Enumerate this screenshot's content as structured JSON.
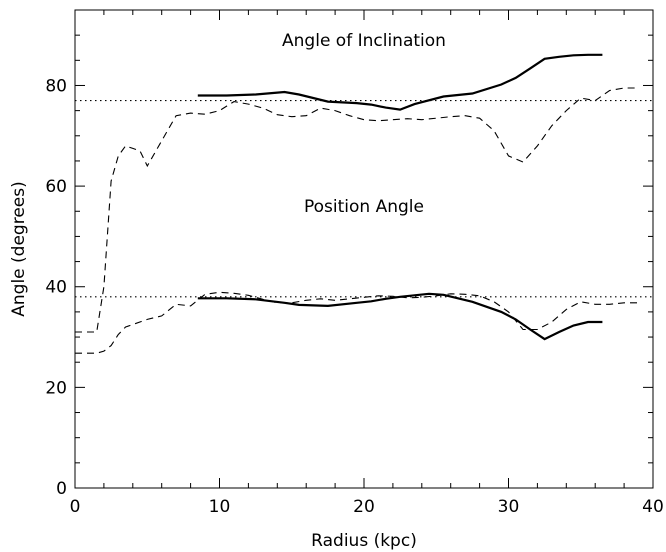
{
  "chart_data": {
    "type": "line",
    "title": "",
    "xlabel": "Radius (kpc)",
    "ylabel": "Angle (degrees)",
    "xlim": [
      0,
      40
    ],
    "ylim": [
      0,
      95
    ],
    "x_ticks": [
      0,
      10,
      20,
      30,
      40
    ],
    "y_ticks": [
      0,
      20,
      40,
      60,
      80
    ],
    "x_tick_labels": [
      "0",
      "10",
      "20",
      "30",
      "40"
    ],
    "y_tick_labels": [
      "0",
      "20",
      "40",
      "60",
      "80"
    ],
    "grid": false,
    "legend": "none",
    "annotations": [
      {
        "text": "Angle of Inclination",
        "x": 20,
        "y": 89
      },
      {
        "text": "Position Angle",
        "x": 20,
        "y": 56
      }
    ],
    "reference_lines": [
      {
        "y": 77,
        "style": "dotted"
      },
      {
        "y": 38,
        "style": "dotted"
      }
    ],
    "series": [
      {
        "style": "solid",
        "x": [
          8.5,
          10.5,
          12.5,
          14.5,
          15.5,
          17.5,
          19.5,
          20.5,
          21.5,
          22.5,
          23.5,
          25.5,
          27.5,
          29.5,
          30.5,
          31.5,
          32.5,
          33.5,
          34.5,
          35.5,
          36.5
        ],
        "y": [
          78,
          78,
          78.2,
          78.7,
          78.2,
          76.8,
          76.5,
          76.2,
          75.6,
          75.2,
          76.3,
          77.8,
          78.4,
          80.2,
          81.5,
          83.4,
          85.3,
          85.7,
          86,
          86.1,
          86.1
        ]
      },
      {
        "style": "dashed",
        "x": [
          0,
          1.5,
          2,
          2.5,
          3,
          3.5,
          4,
          4.5,
          5,
          6,
          7,
          8,
          9,
          10,
          11,
          12,
          13,
          14,
          15,
          16,
          17,
          18,
          19,
          20,
          21,
          22,
          23,
          24,
          25,
          26,
          27,
          28,
          29,
          30,
          31,
          32,
          33,
          34,
          35,
          36,
          37,
          38,
          39
        ],
        "y": [
          31,
          31,
          40,
          61,
          66,
          68,
          67.5,
          67,
          64,
          69,
          74,
          74.5,
          74.3,
          75,
          76.8,
          76.3,
          75.5,
          74.2,
          73.8,
          74,
          75.5,
          75,
          74,
          73.2,
          73,
          73.2,
          73.4,
          73.2,
          73.5,
          73.8,
          74,
          73.5,
          71,
          66,
          64.8,
          68,
          72,
          75,
          77.5,
          77,
          79,
          79.5,
          79.5
        ]
      },
      {
        "style": "solid",
        "x": [
          8.5,
          10.5,
          12.5,
          14.5,
          15.5,
          17.5,
          19.5,
          20.5,
          21.5,
          22.5,
          24.5,
          25.5,
          27.5,
          29.5,
          30.5,
          31.5,
          32.5,
          33.5,
          34.5,
          35.5,
          36.5
        ],
        "y": [
          37.7,
          37.7,
          37.5,
          36.8,
          36.4,
          36.2,
          36.8,
          37.1,
          37.6,
          38,
          38.6,
          38.4,
          37,
          35,
          33.5,
          31.5,
          29.6,
          31,
          32.3,
          33,
          33
        ]
      },
      {
        "style": "dashed",
        "x": [
          0,
          1.5,
          2,
          2.5,
          3,
          3.5,
          4,
          5,
          6,
          7,
          8,
          9,
          10,
          11,
          12,
          13,
          14,
          15,
          16,
          17,
          18,
          19,
          20,
          21,
          22,
          23,
          24,
          25,
          26,
          27,
          28,
          29,
          30,
          31,
          32,
          33,
          34,
          35,
          36,
          37,
          38,
          39
        ],
        "y": [
          26.8,
          26.8,
          27.2,
          28.3,
          30.5,
          32,
          32.5,
          33.5,
          34.2,
          36.5,
          36.2,
          38.5,
          38.9,
          38.7,
          38.3,
          37.5,
          36.8,
          36.8,
          37.3,
          37.6,
          37.3,
          37.6,
          37.9,
          38.2,
          38.1,
          37.8,
          37.9,
          38.2,
          38.6,
          38.5,
          38.2,
          37,
          35,
          31.5,
          31.5,
          33,
          35.5,
          37,
          36.5,
          36.5,
          36.8,
          36.8
        ]
      }
    ]
  }
}
